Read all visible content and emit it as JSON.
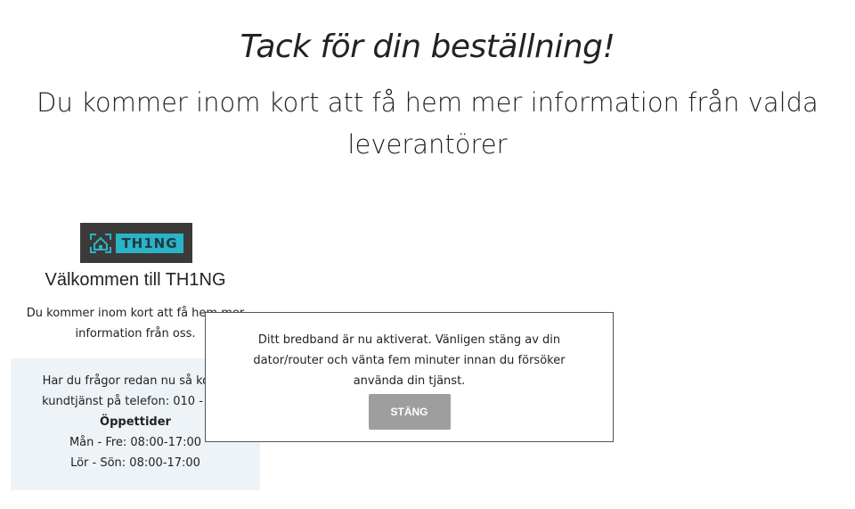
{
  "header": {
    "title": "Tack för din beställning!",
    "subtitle": "Du kommer inom kort att få hem mer information från valda leverantörer"
  },
  "card": {
    "logo_text": "TH1NG",
    "brand_color": "#2ab3c7",
    "heading": "Välkommen till TH1NG",
    "intro": "Du kommer inom kort att få hem mer information från oss.",
    "contact_line1": "Har du frågor redan nu så konta",
    "contact_line2": "kundtjänst på telefon: 010 - 252",
    "hours_heading": "Öppettider",
    "hours_weekday": "Mån - Fre: 08:00-17:00",
    "hours_weekend": "Lör - Sön: 08:00-17:00"
  },
  "modal": {
    "message": "Ditt bredband är nu aktiverat. Vänligen stäng av din dator/router och vänta fem minuter innan du försöker använda din tjänst.",
    "close_label": "STÄNG"
  }
}
